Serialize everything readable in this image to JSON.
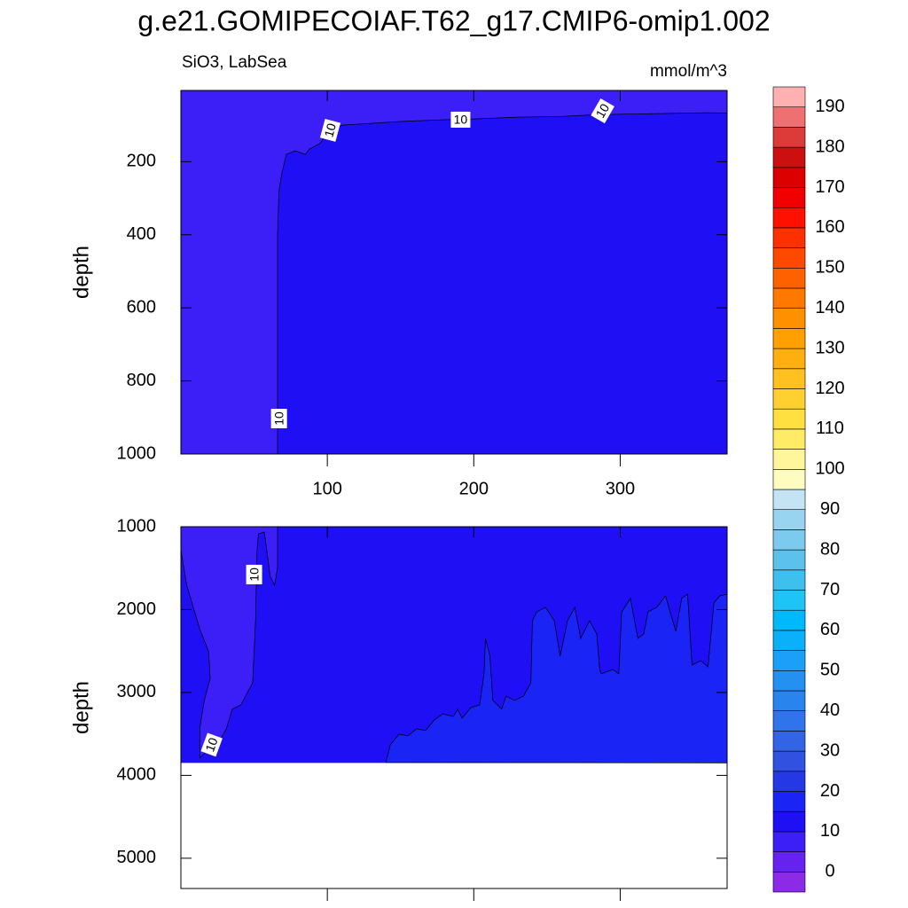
{
  "chart_data": {
    "type": "contour",
    "title": "g.e21.GOMIPECOIAF.T62_g17.CMIP6-omip1.002",
    "subtitle_left": "SiO3, LabSea",
    "subtitle_right": "mmol/m^3",
    "panels": [
      {
        "ylabel": "depth",
        "xlim": [
          0,
          373
        ],
        "ylim": [
          5,
          1000
        ],
        "y_inverted": true,
        "xticks": [
          100,
          200,
          300
        ],
        "xtick_labels": true,
        "yticks": [
          200,
          400,
          600,
          800,
          1000
        ],
        "regions": [
          {
            "level": 10,
            "x": [
              0,
              373,
              373,
              0
            ],
            "y": [
              5,
              5,
              1000,
              1000
            ]
          },
          {
            "level": 5,
            "x": [
              0,
              66,
              66,
              67,
              69,
              72,
              78,
              85,
              88,
              95,
              100,
              110,
              130,
              150,
              180,
              200,
              230,
              260,
              280,
              300,
              330,
              360,
              373,
              373,
              0
            ],
            "y": [
              1000,
              1000,
              400,
              280,
              230,
              180,
              170,
              180,
              165,
              150,
              120,
              100,
              95,
              90,
              85,
              83,
              78,
              76,
              72,
              70,
              68,
              66,
              67,
              5,
              5
            ]
          }
        ],
        "contour_labels": [
          {
            "label": "10",
            "x": 102,
            "y": 114,
            "angle": -75
          },
          {
            "label": "10",
            "x": 191,
            "y": 85,
            "angle": 0
          },
          {
            "label": "10",
            "x": 288,
            "y": 61,
            "angle": -60
          },
          {
            "label": "10",
            "x": 67,
            "y": 903,
            "angle": -90
          }
        ]
      },
      {
        "ylabel": "depth",
        "xlim": [
          0,
          373
        ],
        "ylim": [
          1000,
          5365
        ],
        "y_inverted": true,
        "xticks": [
          100,
          200,
          300
        ],
        "xtick_labels": false,
        "yticks": [
          1000,
          2000,
          3000,
          4000,
          5000
        ],
        "regions": [
          {
            "level": 10,
            "x": [
              0,
              373,
              373,
              0
            ],
            "y": [
              1000,
              1000,
              3850,
              3850
            ]
          },
          {
            "level": 5,
            "x": [
              0,
              0,
              4,
              13,
              19,
              20,
              16,
              13,
              13,
              18,
              25,
              31,
              35,
              41,
              49,
              51,
              52,
              53,
              57,
              61,
              64,
              66,
              66
            ],
            "y": [
              1000,
              1278,
              1706,
              2241,
              2508,
              2829,
              3096,
              3417,
              3791,
              3700,
              3631,
              3439,
              3203,
              3150,
              2882,
              2134,
              1278,
              1086,
              1064,
              1599,
              1706,
              1492,
              1000
            ]
          },
          {
            "level": 15,
            "x": [
              140,
              143,
              149,
              155,
              161,
              167,
              173,
              179,
              186,
              189,
              192,
              198,
              204,
              207,
              208,
              211,
              213,
              219,
              222,
              228,
              234,
              239,
              240,
              243,
              249,
              255,
              259,
              264,
              269,
              273,
              279,
              284,
              286,
              287,
              295,
              299,
              301,
              307,
              312,
              316,
              319,
              325,
              331,
              334,
              338,
              342,
              346,
              349,
              355,
              360,
              364,
              368,
              373,
              373
            ],
            "y": [
              3845,
              3631,
              3503,
              3524,
              3438,
              3460,
              3332,
              3257,
              3289,
              3203,
              3310,
              3182,
              3150,
              2775,
              2348,
              2561,
              3096,
              3203,
              3043,
              3096,
              3043,
              2882,
              2134,
              2027,
              1973,
              2134,
              2561,
              2134,
              1973,
              2348,
              2134,
              2294,
              2722,
              2775,
              2722,
              2775,
              2027,
              1866,
              2348,
              2294,
              2027,
              1973,
              1834,
              2027,
              2262,
              1866,
              1813,
              2668,
              2615,
              2690,
              1920,
              1834,
              1813,
              3850
            ]
          }
        ],
        "contour_labels": [
          {
            "label": "10",
            "x": 50,
            "y": 1577,
            "angle": -90
          },
          {
            "label": "10",
            "x": 21,
            "y": 3631,
            "angle": -70
          }
        ]
      }
    ],
    "colorbar": {
      "levels": [
        0,
        5,
        10,
        15,
        20,
        25,
        30,
        35,
        40,
        45,
        50,
        55,
        60,
        65,
        70,
        75,
        80,
        85,
        90,
        95,
        100,
        105,
        110,
        115,
        120,
        125,
        130,
        135,
        140,
        145,
        150,
        155,
        160,
        165,
        170,
        175,
        180,
        185,
        190
      ],
      "ticks": [
        0,
        10,
        20,
        30,
        40,
        50,
        60,
        70,
        80,
        90,
        100,
        110,
        120,
        130,
        140,
        150,
        160,
        170,
        180,
        190
      ],
      "colors": [
        "#8b2be8",
        "#6622ee",
        "#3c1ef6",
        "#1e0ff5",
        "#1a24f5",
        "#2438e6",
        "#3152e0",
        "#3464e6",
        "#2f74ea",
        "#2a84ee",
        "#2490f2",
        "#1aa0f6",
        "#0ab0fa",
        "#00b9fc",
        "#1ec4f6",
        "#3ec0ee",
        "#5cc2ec",
        "#7ccaee",
        "#98d4f0",
        "#c4e4f6",
        "#fffcc0",
        "#fff59a",
        "#ffec66",
        "#ffe040",
        "#ffd030",
        "#ffc020",
        "#ffb010",
        "#ffa000",
        "#ff9000",
        "#ff7800",
        "#ff6000",
        "#ff4800",
        "#ff3000",
        "#ff1000",
        "#f00000",
        "#dd0000",
        "#cc1010",
        "#dd3a3a",
        "#ee7070",
        "#ffb0b0"
      ]
    }
  }
}
